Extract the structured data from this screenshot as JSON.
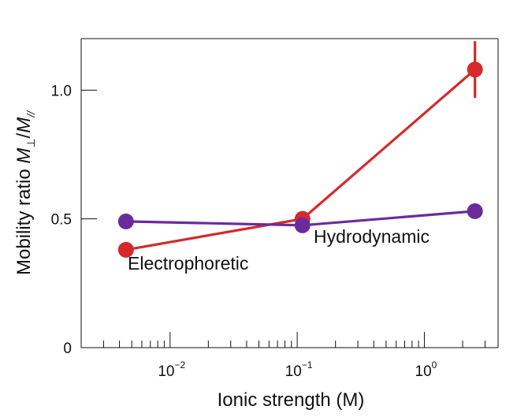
{
  "chart_data": {
    "type": "line",
    "title": "",
    "xlabel": "Ionic strength (M)",
    "ylabel": {
      "prefix": "Mobility ratio ",
      "m1": "M",
      "sub1": "⊥",
      "slash": "/",
      "m2": "M",
      "sub2": "//"
    },
    "x_scale": "log",
    "xlim": [
      0.002,
      3.8
    ],
    "ylim": [
      0,
      1.2
    ],
    "y_ticks": [
      {
        "value": 0,
        "label": "0"
      },
      {
        "value": 0.5,
        "label": "0.5"
      },
      {
        "value": 1.0,
        "label": "1.0"
      }
    ],
    "x_major_ticks": [
      {
        "value": 0.01,
        "base": "10",
        "exp": "−2"
      },
      {
        "value": 0.1,
        "base": "10",
        "exp": "−1"
      },
      {
        "value": 1,
        "base": "10",
        "exp": "0"
      }
    ],
    "grid": false,
    "series": [
      {
        "name": "Electrophoretic",
        "color": "#d42a2a",
        "x": [
          0.0045,
          0.11,
          2.5
        ],
        "y": [
          0.38,
          0.5,
          1.08
        ],
        "yerr": [
          0,
          0,
          0.11
        ]
      },
      {
        "name": "Hydrodynamic",
        "color": "#6a2c9a",
        "x": [
          0.0045,
          0.11,
          2.5
        ],
        "y": [
          0.49,
          0.475,
          0.53
        ],
        "yerr": [
          0,
          0,
          0
        ]
      }
    ]
  }
}
